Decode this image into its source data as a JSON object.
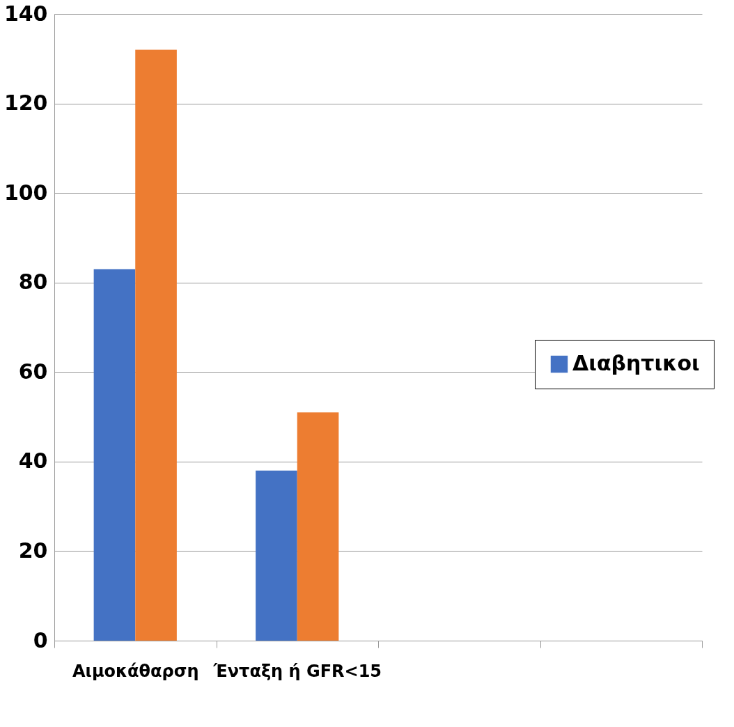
{
  "chart_data": {
    "type": "bar",
    "categories": [
      "Αιμοκάθαρση",
      "Ένταξη ή GFR<15",
      null,
      null
    ],
    "series": [
      {
        "name": "Διαβητικοι",
        "color": "#4472c4",
        "values": [
          83,
          38,
          null,
          null
        ]
      },
      {
        "color": "#ed7d31",
        "values": [
          132,
          51,
          null,
          null
        ]
      }
    ],
    "ylim": [
      0,
      140
    ],
    "yticks": [
      0,
      20,
      40,
      60,
      80,
      100,
      120,
      140
    ],
    "grid": "y",
    "legend": "right"
  }
}
